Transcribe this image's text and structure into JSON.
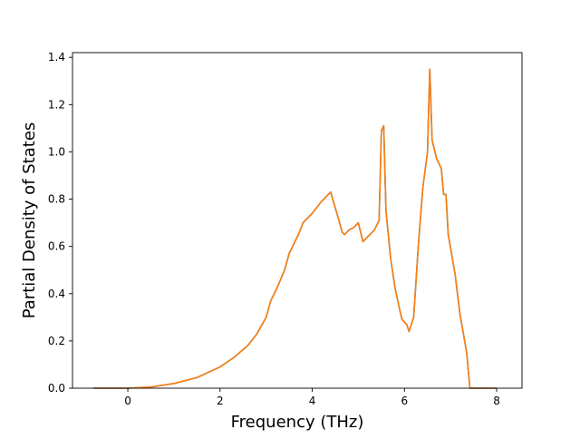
{
  "chart_data": {
    "type": "line",
    "title": "",
    "xlabel": "Frequency (THz)",
    "ylabel": "Partial Density of States",
    "xlim": [
      -1.2,
      8.55
    ],
    "ylim": [
      0.0,
      1.42
    ],
    "x_ticks": [
      0,
      2,
      4,
      6,
      8
    ],
    "y_ticks": [
      0.0,
      0.2,
      0.4,
      0.6,
      0.8,
      1.0,
      1.2,
      1.4
    ],
    "x_tick_labels": [
      "0",
      "2",
      "4",
      "6",
      "8"
    ],
    "y_tick_labels": [
      "0.0",
      "0.2",
      "0.4",
      "0.6",
      "0.8",
      "1.0",
      "1.2",
      "1.4"
    ],
    "grid": false,
    "legend": "none",
    "colors": {
      "series_a": "#1f77b4",
      "series_b": "#ff7f0e"
    },
    "series": [
      {
        "color": "#1f77b4",
        "points": [
          [
            -0.75,
            0.0
          ],
          [
            0.0,
            0.0
          ],
          [
            0.5,
            0.005
          ],
          [
            1.0,
            0.02
          ],
          [
            1.5,
            0.045
          ],
          [
            2.0,
            0.09
          ],
          [
            2.3,
            0.13
          ],
          [
            2.6,
            0.18
          ],
          [
            2.8,
            0.23
          ],
          [
            3.0,
            0.3
          ],
          [
            3.1,
            0.37
          ],
          [
            3.25,
            0.43
          ],
          [
            3.4,
            0.5
          ],
          [
            3.5,
            0.57
          ],
          [
            3.6,
            0.61
          ],
          [
            3.7,
            0.65
          ],
          [
            3.8,
            0.7
          ],
          [
            4.0,
            0.74
          ],
          [
            4.2,
            0.79
          ],
          [
            4.4,
            0.83
          ],
          [
            4.55,
            0.73
          ],
          [
            4.65,
            0.66
          ],
          [
            4.7,
            0.65
          ],
          [
            4.8,
            0.67
          ],
          [
            4.9,
            0.68
          ],
          [
            5.0,
            0.7
          ],
          [
            5.05,
            0.66
          ],
          [
            5.1,
            0.62
          ],
          [
            5.2,
            0.64
          ],
          [
            5.3,
            0.66
          ],
          [
            5.35,
            0.67
          ],
          [
            5.45,
            0.71
          ],
          [
            5.5,
            1.09
          ],
          [
            5.55,
            1.11
          ],
          [
            5.6,
            0.75
          ],
          [
            5.7,
            0.55
          ],
          [
            5.8,
            0.42
          ],
          [
            5.9,
            0.33
          ],
          [
            5.95,
            0.29
          ],
          [
            6.05,
            0.27
          ],
          [
            6.1,
            0.24
          ],
          [
            6.2,
            0.3
          ],
          [
            6.3,
            0.6
          ],
          [
            6.4,
            0.85
          ],
          [
            6.5,
            1.0
          ],
          [
            6.55,
            1.35
          ],
          [
            6.6,
            1.05
          ],
          [
            6.7,
            0.97
          ],
          [
            6.8,
            0.93
          ],
          [
            6.85,
            0.82
          ],
          [
            6.9,
            0.82
          ],
          [
            6.95,
            0.65
          ],
          [
            7.1,
            0.48
          ],
          [
            7.2,
            0.32
          ],
          [
            7.35,
            0.15
          ],
          [
            7.42,
            0.0
          ],
          [
            8.0,
            0.0
          ]
        ]
      },
      {
        "color": "#ff7f0e",
        "points": [
          [
            -0.75,
            0.0
          ],
          [
            0.0,
            0.0
          ],
          [
            0.5,
            0.005
          ],
          [
            1.0,
            0.02
          ],
          [
            1.5,
            0.045
          ],
          [
            2.0,
            0.09
          ],
          [
            2.3,
            0.13
          ],
          [
            2.6,
            0.18
          ],
          [
            2.8,
            0.23
          ],
          [
            3.0,
            0.3
          ],
          [
            3.1,
            0.37
          ],
          [
            3.25,
            0.43
          ],
          [
            3.4,
            0.5
          ],
          [
            3.5,
            0.57
          ],
          [
            3.6,
            0.61
          ],
          [
            3.7,
            0.65
          ],
          [
            3.8,
            0.7
          ],
          [
            4.0,
            0.74
          ],
          [
            4.2,
            0.79
          ],
          [
            4.4,
            0.83
          ],
          [
            4.55,
            0.73
          ],
          [
            4.65,
            0.66
          ],
          [
            4.7,
            0.65
          ],
          [
            4.8,
            0.67
          ],
          [
            4.9,
            0.68
          ],
          [
            5.0,
            0.7
          ],
          [
            5.05,
            0.66
          ],
          [
            5.1,
            0.62
          ],
          [
            5.2,
            0.64
          ],
          [
            5.3,
            0.66
          ],
          [
            5.35,
            0.67
          ],
          [
            5.45,
            0.71
          ],
          [
            5.5,
            1.09
          ],
          [
            5.55,
            1.11
          ],
          [
            5.6,
            0.75
          ],
          [
            5.7,
            0.55
          ],
          [
            5.8,
            0.42
          ],
          [
            5.9,
            0.33
          ],
          [
            5.95,
            0.29
          ],
          [
            6.05,
            0.27
          ],
          [
            6.1,
            0.24
          ],
          [
            6.2,
            0.3
          ],
          [
            6.3,
            0.6
          ],
          [
            6.4,
            0.85
          ],
          [
            6.5,
            1.0
          ],
          [
            6.55,
            1.35
          ],
          [
            6.6,
            1.05
          ],
          [
            6.7,
            0.97
          ],
          [
            6.8,
            0.93
          ],
          [
            6.85,
            0.82
          ],
          [
            6.9,
            0.82
          ],
          [
            6.95,
            0.65
          ],
          [
            7.1,
            0.48
          ],
          [
            7.2,
            0.32
          ],
          [
            7.35,
            0.15
          ],
          [
            7.42,
            0.0
          ],
          [
            8.0,
            0.0
          ]
        ]
      }
    ]
  }
}
